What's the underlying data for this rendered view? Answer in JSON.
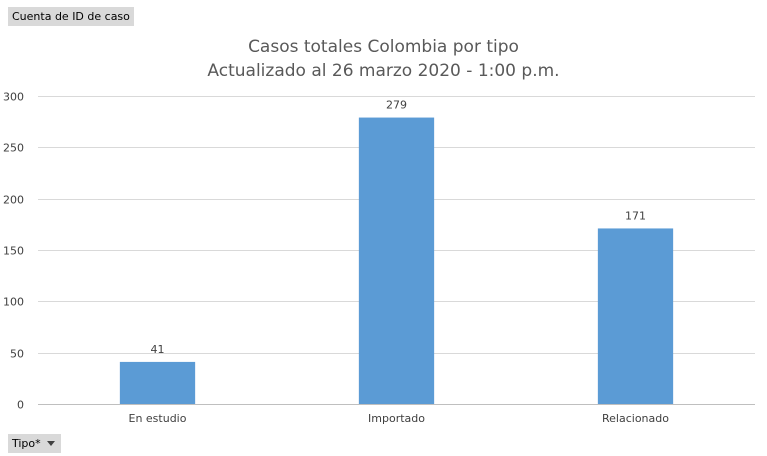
{
  "pivot": {
    "value_field_label": "Cuenta de ID de caso",
    "axis_field_label": "Tipo*"
  },
  "chart_data": {
    "type": "bar",
    "title": "Casos totales Colombia por tipo",
    "subtitle": "Actualizado al 26 marzo 2020 - 1:00 p.m.",
    "categories": [
      "En estudio",
      "Importado",
      "Relacionado"
    ],
    "values": [
      41,
      279,
      171
    ],
    "ylim": [
      0,
      300
    ],
    "yticks": [
      0,
      50,
      100,
      150,
      200,
      250,
      300
    ],
    "grid": true,
    "data_labels": true,
    "bar_color": "#5b9bd5",
    "gridline_color": "#d9d9d9"
  }
}
